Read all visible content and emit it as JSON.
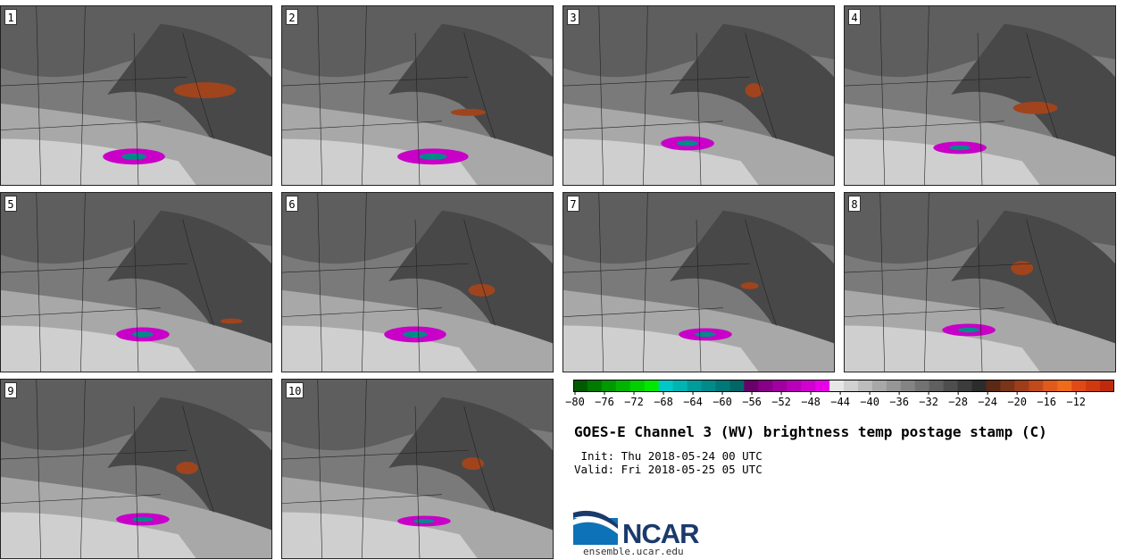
{
  "panels": [
    {
      "label": "1"
    },
    {
      "label": "2"
    },
    {
      "label": "3"
    },
    {
      "label": "4"
    },
    {
      "label": "5"
    },
    {
      "label": "6"
    },
    {
      "label": "7"
    },
    {
      "label": "8"
    },
    {
      "label": "9"
    },
    {
      "label": "10"
    }
  ],
  "colorbar": {
    "ticks": [
      "−80",
      "−76",
      "−72",
      "−68",
      "−64",
      "−60",
      "−56",
      "−52",
      "−48",
      "−44",
      "−40",
      "−36",
      "−32",
      "−28",
      "−24",
      "−20",
      "−16",
      "−12"
    ],
    "colors": [
      "#005a00",
      "#007a00",
      "#009a00",
      "#00b400",
      "#00d000",
      "#00e800",
      "#00c8c8",
      "#00b4b4",
      "#009c9c",
      "#008a8a",
      "#007878",
      "#006666",
      "#6a006a",
      "#880088",
      "#a000a0",
      "#b800b8",
      "#d000d0",
      "#e800e8",
      "#e6e6e6",
      "#d0d0d0",
      "#bcbcbc",
      "#a8a8a8",
      "#969696",
      "#848484",
      "#727272",
      "#606060",
      "#4e4e4e",
      "#3c3c3c",
      "#2c2c2c",
      "#5a2a14",
      "#7a3418",
      "#9c3e1a",
      "#c04a1c",
      "#e05a1c",
      "#f06a1c",
      "#e04a14",
      "#d03a10",
      "#c02a0c"
    ]
  },
  "title": "GOES-E Channel 3 (WV) brightness temp postage stamp (C)",
  "init": " Init: Thu 2018-05-24 00 UTC",
  "valid": "Valid: Fri 2018-05-25 05 UTC",
  "logo": {
    "name": "NCAR",
    "url": "ensemble.ucar.edu"
  }
}
